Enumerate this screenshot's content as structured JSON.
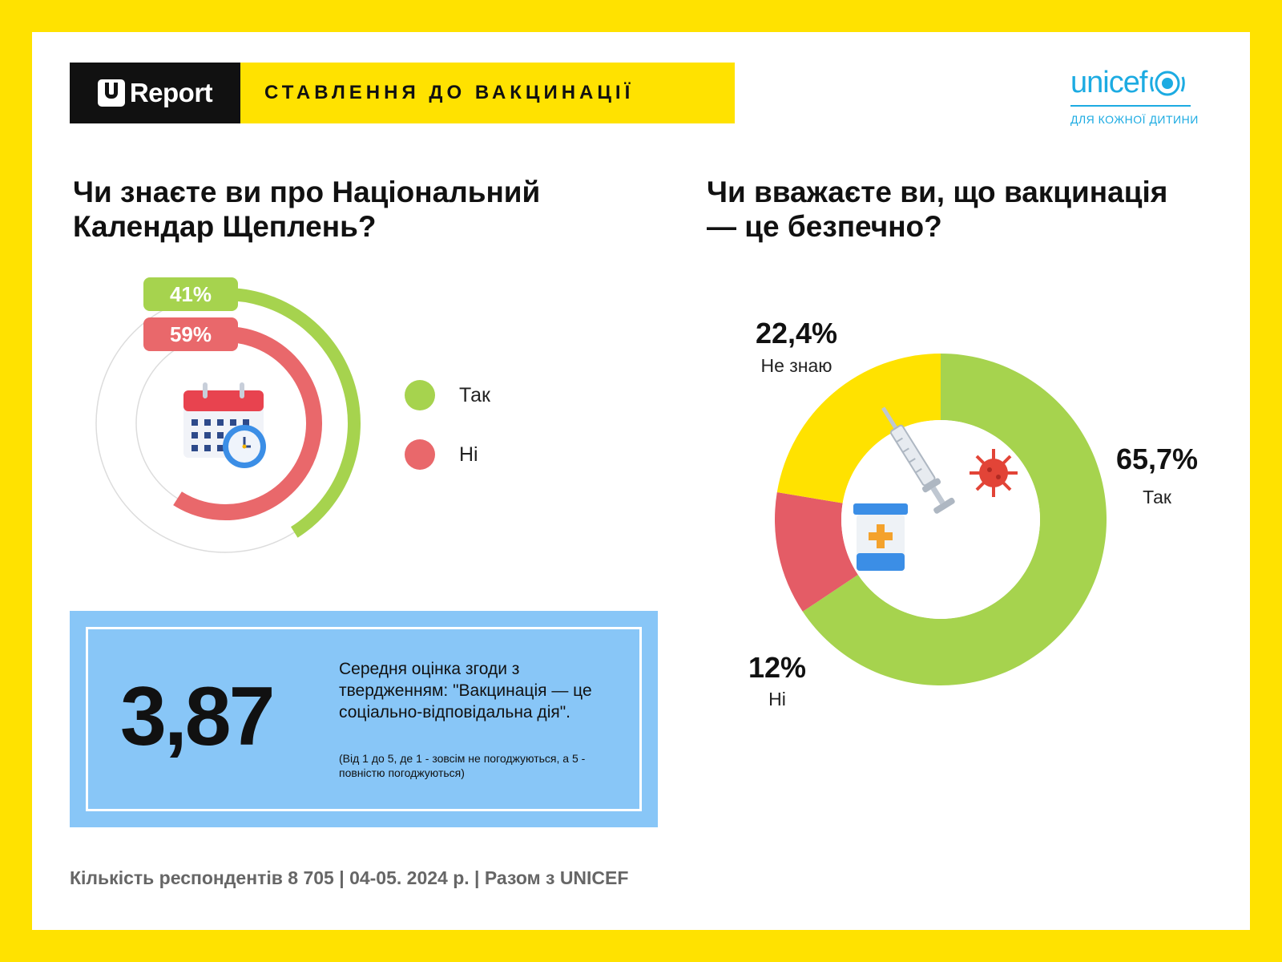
{
  "header": {
    "logo_text": "Report",
    "title": "СТАВЛЕННЯ ДО ВАКЦИНАЦІЇ"
  },
  "unicef": {
    "name": "unicef",
    "tagline": "ДЛЯ КОЖНОЇ ДИТИНИ"
  },
  "colors": {
    "yellow": "#FFE200",
    "green": "#A6D34E",
    "red": "#E9686B",
    "donut_red": "#E45C66",
    "blue_box": "#88C6F7",
    "unicef_blue": "#1CABE2"
  },
  "icons": [
    "calendar-clock-icon",
    "vaccine-syringe-icon",
    "virus-icon",
    "medicine-jar-icon",
    "un-globe-icon"
  ],
  "footer": "Кількість респондентів 8 705 | 04-05. 2024 р. | Разом з UNICEF",
  "chart_data": [
    {
      "type": "radial-bar",
      "title": "Чи знаєте ви про Національний Календар Щеплень?",
      "series": [
        {
          "name": "Так",
          "value": 41,
          "label": "41%",
          "color": "#A6D34E"
        },
        {
          "name": "Ні",
          "value": 59,
          "label": "59%",
          "color": "#E9686B"
        }
      ],
      "legend": [
        {
          "label": "Так",
          "color": "#A6D34E"
        },
        {
          "label": "Ні",
          "color": "#E9686B"
        }
      ],
      "legend_position": "right"
    },
    {
      "type": "pie",
      "title": "Чи вважаєте ви, що вакцинація — це безпечно?",
      "slices": [
        {
          "name": "Так",
          "value": 65.7,
          "label": "65,7%",
          "color": "#A6D34E"
        },
        {
          "name": "Ні",
          "value": 12,
          "label": "12%",
          "color": "#E45C66"
        },
        {
          "name": "Не знаю",
          "value": 22.4,
          "label": "22,4%",
          "color": "#FFE200"
        }
      ]
    }
  ],
  "score": {
    "value": "3,87",
    "text": "Середня оцінка згоди з твердженням: \"Вакцинація — це соціально-відповідальна дія\".",
    "note": "(Від 1 до 5, де 1 - зовсім не погоджуються, а 5 - повністю погоджуються)"
  }
}
